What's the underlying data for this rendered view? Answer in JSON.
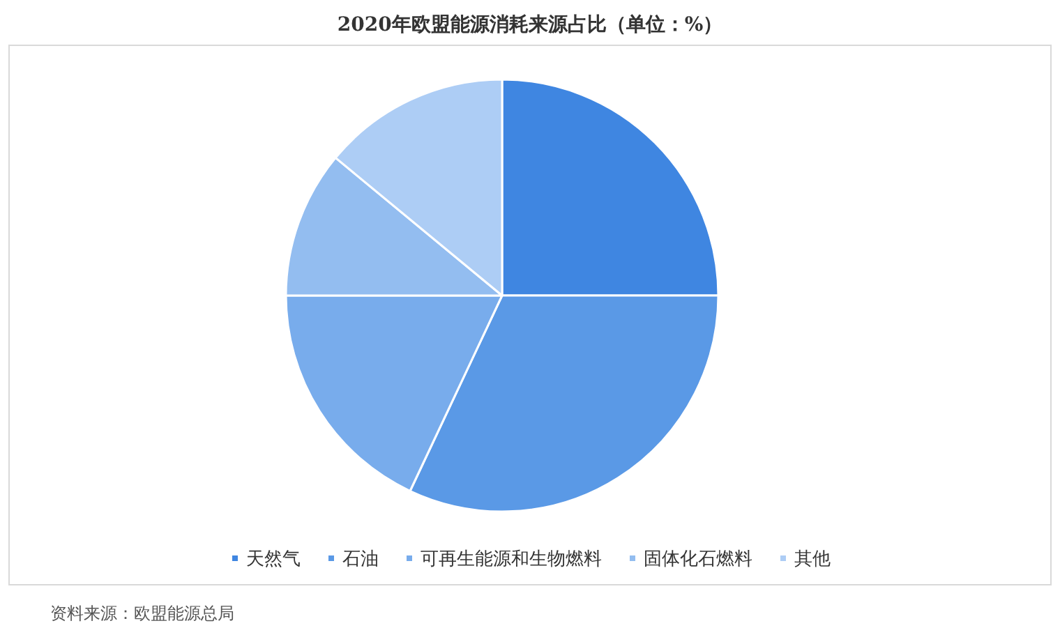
{
  "chart_data": {
    "type": "pie",
    "title": "2020年欧盟能源消耗来源占比（单位：%）",
    "categories": [
      "天然气",
      "石油",
      "可再生能源和生物燃料",
      "固体化石燃料",
      "其他"
    ],
    "values": [
      25,
      32,
      18,
      11,
      14
    ],
    "colors": [
      "#3f86e1",
      "#5a99e6",
      "#78acec",
      "#93bdf0",
      "#adcdf5"
    ],
    "legend": "bottom",
    "annotations": [
      "资料来源：欧盟能源总局"
    ]
  }
}
